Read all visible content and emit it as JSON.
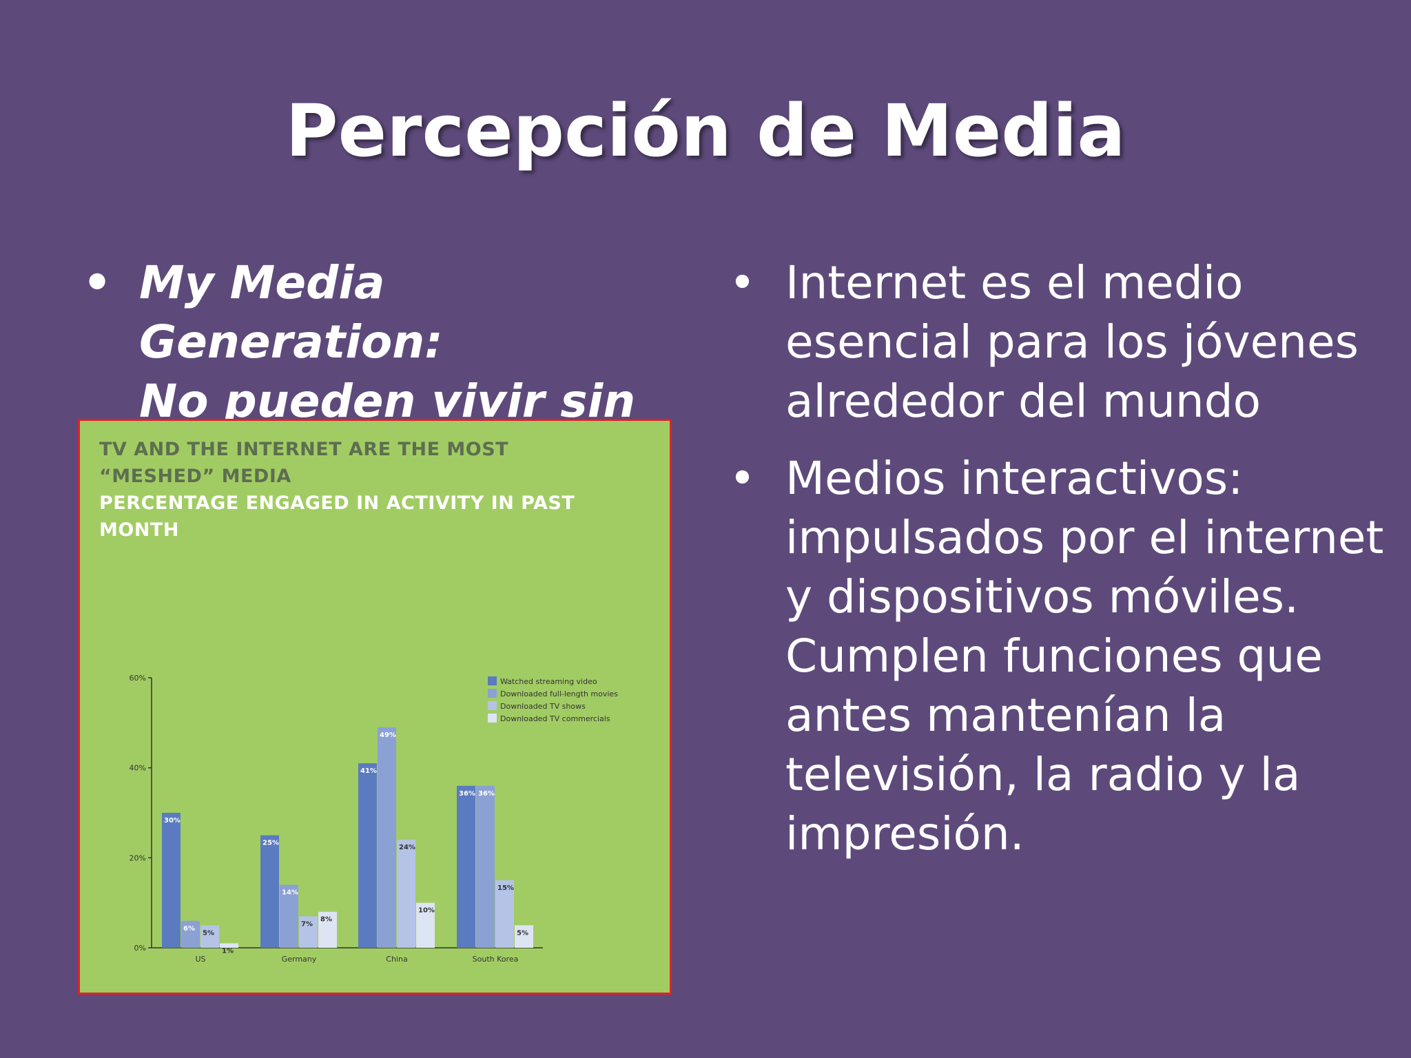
{
  "slide": {
    "title": "Percepción de Media",
    "left_bullets": [
      "My Media Generation:\nNo pueden vivir sin él."
    ],
    "right_bullets": [
      "Internet es el medio esencial para los jóvenes alrededor del mundo",
      "Medios interactivos: impulsados por el internet y dispositivos móviles. Cumplen funciones que antes mantenían la televisión, la radio y la impresión."
    ],
    "bullet_char": "•"
  },
  "chart_data": {
    "type": "bar",
    "title": "TV AND THE INTERNET ARE THE MOST “MESHED” MEDIA",
    "subtitle": "PERCENTAGE ENGAGED IN ACTIVITY IN PAST MONTH",
    "categories": [
      "US",
      "Germany",
      "China",
      "South Korea"
    ],
    "series": [
      {
        "name": "Watched streaming video",
        "values": [
          30,
          25,
          41,
          36
        ],
        "labels": [
          "30%",
          "25%",
          "41%",
          "36%"
        ],
        "color": "#5a7bbf"
      },
      {
        "name": "Downloaded full-length movies",
        "values": [
          6,
          14,
          49,
          36
        ],
        "labels": [
          "6%",
          "14%",
          "49%",
          "36%"
        ],
        "color": "#8ba0d3"
      },
      {
        "name": "Downloaded TV shows",
        "values": [
          5,
          7,
          24,
          15
        ],
        "labels": [
          "5%",
          "7%",
          "24%",
          "15%"
        ],
        "color": "#b4c3e6"
      },
      {
        "name": "Downloaded TV commercials",
        "values": [
          1,
          8,
          10,
          5
        ],
        "labels": [
          "1%",
          "8%",
          "10%",
          "5%"
        ],
        "color": "#dde4f4"
      }
    ],
    "yticks": [
      "0%",
      "20%",
      "40%",
      "60%"
    ],
    "ytick_values": [
      0,
      20,
      40,
      60
    ],
    "ylim": [
      0,
      60
    ],
    "legend": "top-right",
    "grid": false,
    "colors": {
      "background": "#a1cc63",
      "border": "#e0202a",
      "axis": "#333333"
    }
  }
}
